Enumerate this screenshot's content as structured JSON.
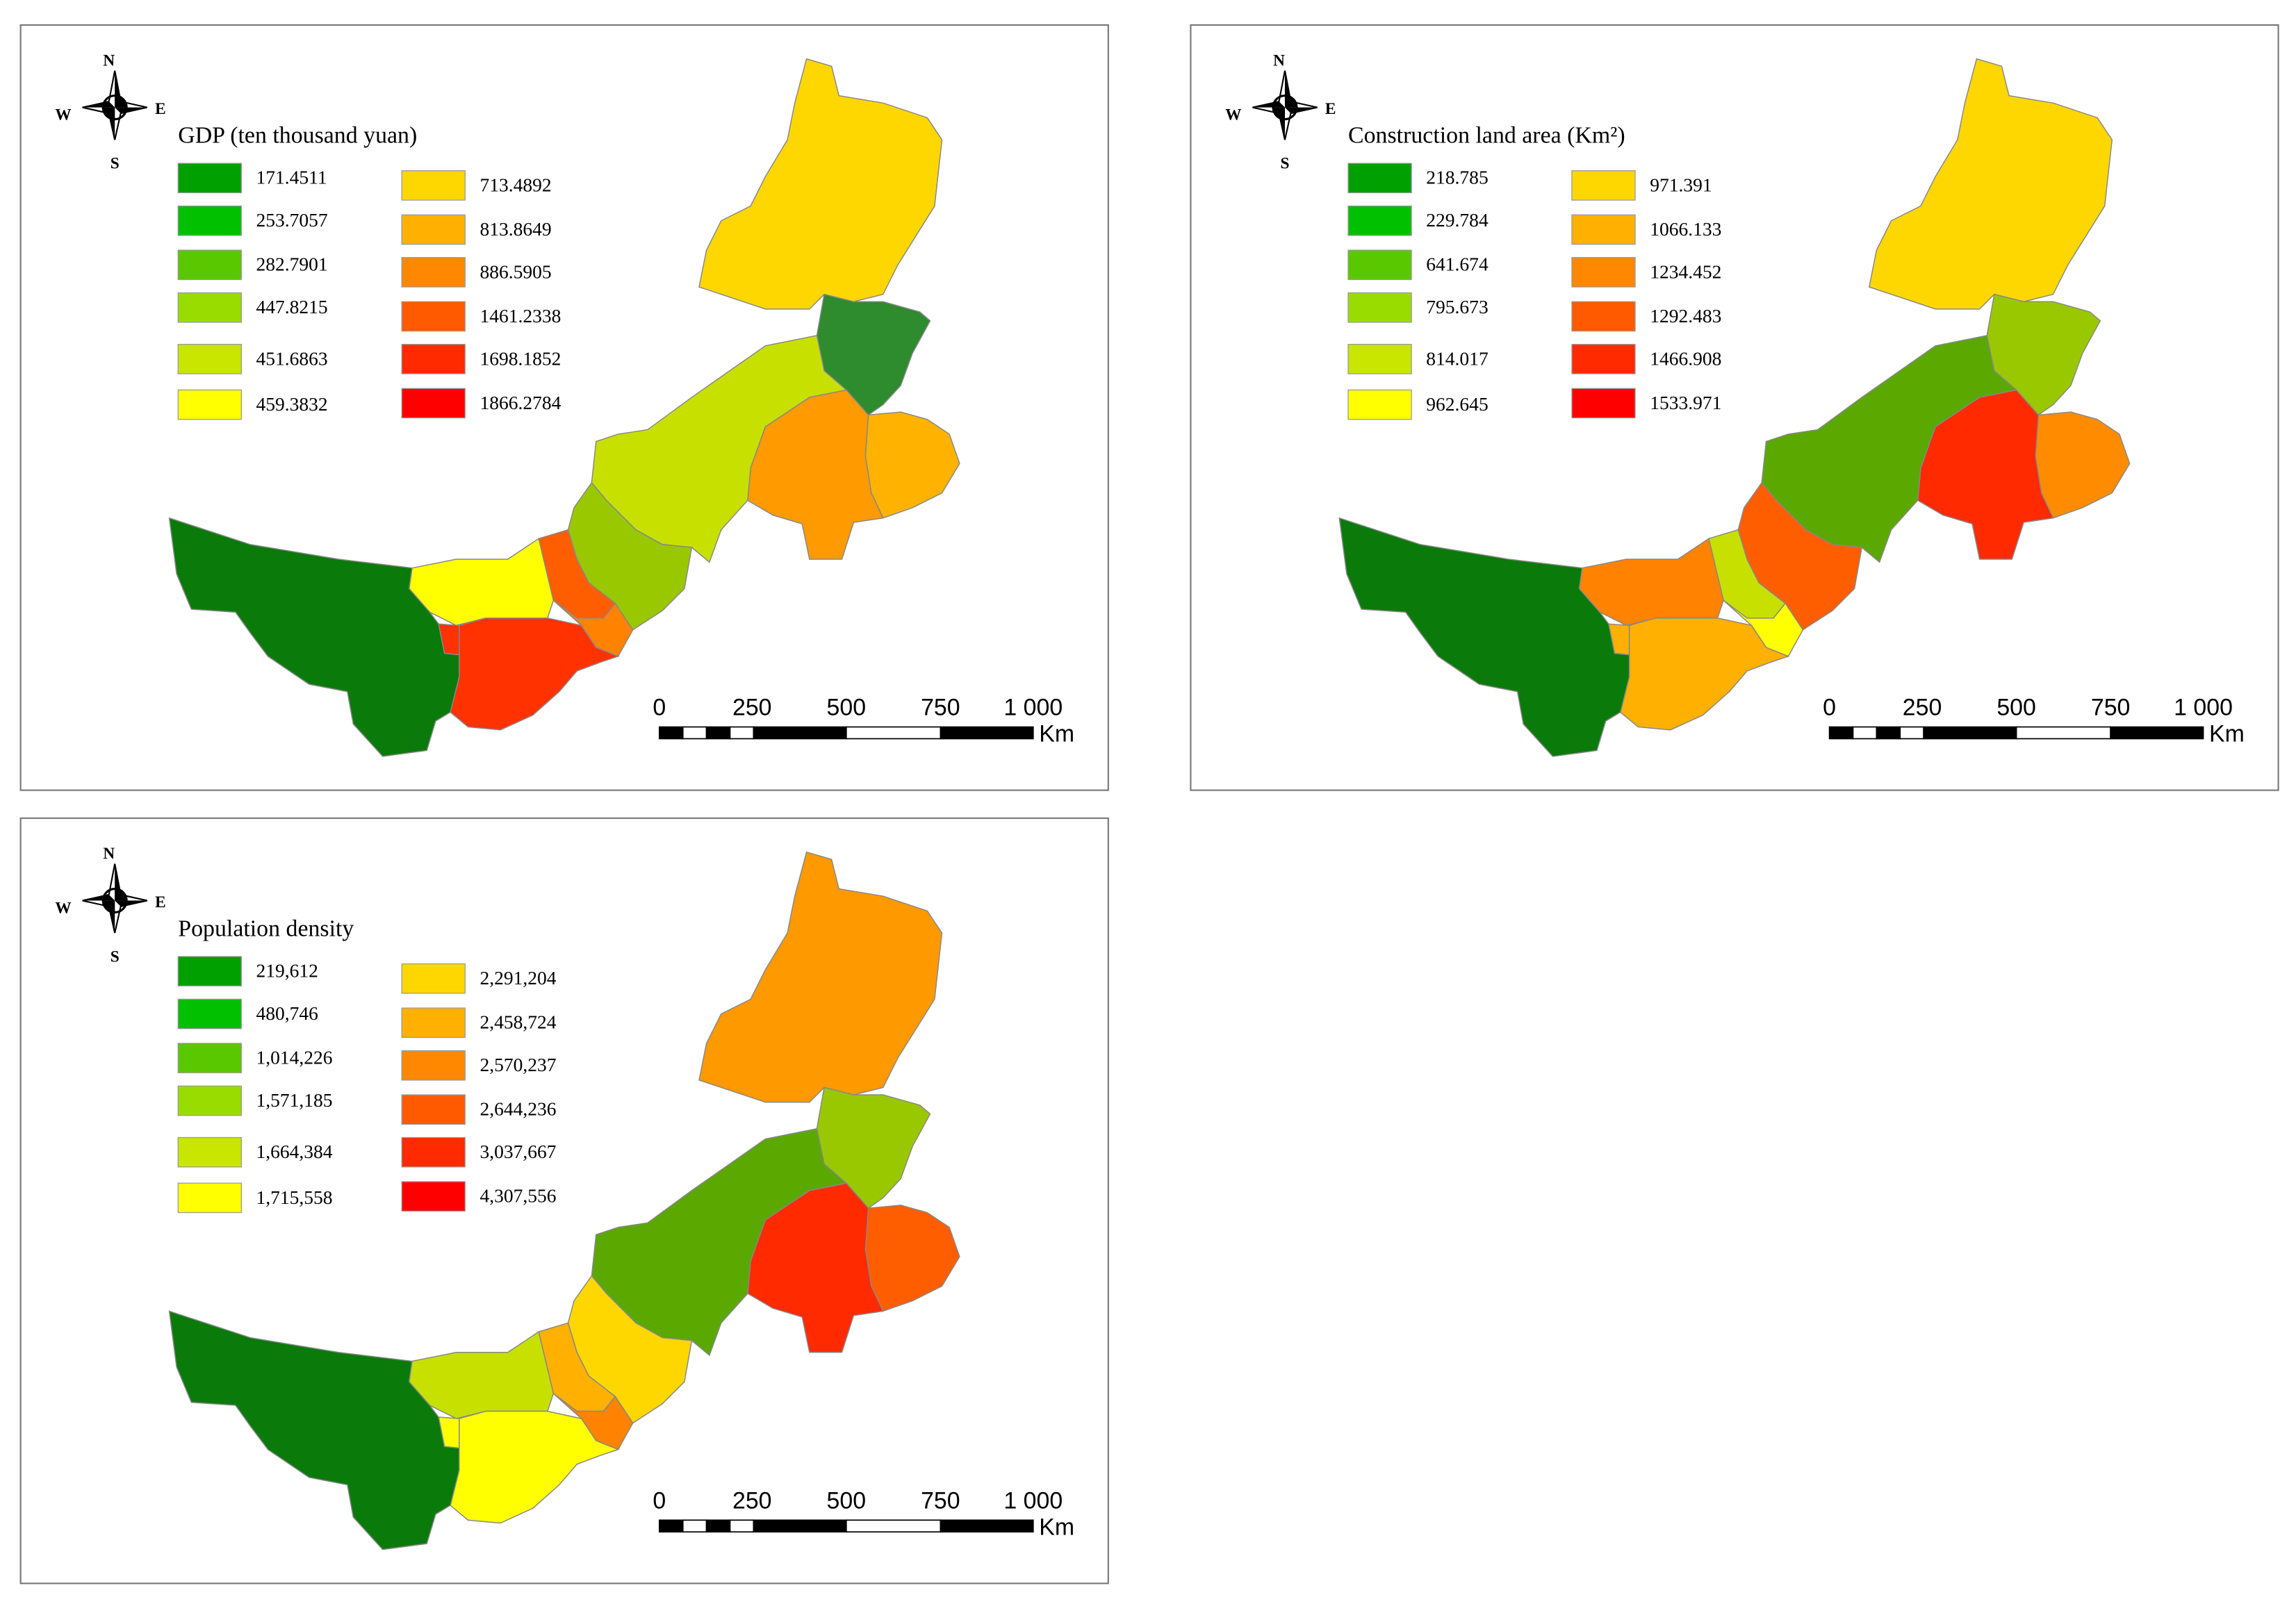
{
  "panels": [
    {
      "legend_title": "GDP (ten thousand yuan)",
      "legend": [
        {
          "label": "171.4511",
          "color": "#00a000"
        },
        {
          "label": "253.7057",
          "color": "#00c000"
        },
        {
          "label": "282.7901",
          "color": "#5ac800"
        },
        {
          "label": "447.8215",
          "color": "#99dd00"
        },
        {
          "label": "451.6863",
          "color": "#c8e600"
        },
        {
          "label": "459.3832",
          "color": "#ffff00"
        },
        {
          "label": "713.4892",
          "color": "#ffd700"
        },
        {
          "label": "813.8649",
          "color": "#ffb000"
        },
        {
          "label": "886.5905",
          "color": "#ff8800"
        },
        {
          "label": "1461.2338",
          "color": "#ff5a00"
        },
        {
          "label": "1698.1852",
          "color": "#ff2a00"
        },
        {
          "label": "1866.2784",
          "color": "#ff0000"
        }
      ]
    },
    {
      "legend_title": "Construction land area (Km²)",
      "legend": [
        {
          "label": "218.785",
          "color": "#00a000"
        },
        {
          "label": "229.784",
          "color": "#00c000"
        },
        {
          "label": "641.674",
          "color": "#5ac800"
        },
        {
          "label": "795.673",
          "color": "#99dd00"
        },
        {
          "label": "814.017",
          "color": "#c8e600"
        },
        {
          "label": "962.645",
          "color": "#ffff00"
        },
        {
          "label": "971.391",
          "color": "#ffd700"
        },
        {
          "label": "1066.133",
          "color": "#ffb000"
        },
        {
          "label": "1234.452",
          "color": "#ff8800"
        },
        {
          "label": "1292.483",
          "color": "#ff5a00"
        },
        {
          "label": "1466.908",
          "color": "#ff2a00"
        },
        {
          "label": "1533.971",
          "color": "#ff0000"
        }
      ]
    },
    {
      "legend_title": "Population density",
      "legend": [
        {
          "label": "219,612",
          "color": "#00a000"
        },
        {
          "label": "480,746",
          "color": "#00c000"
        },
        {
          "label": "1,014,226",
          "color": "#5ac800"
        },
        {
          "label": "1,571,185",
          "color": "#99dd00"
        },
        {
          "label": "1,664,384",
          "color": "#c8e600"
        },
        {
          "label": "1,715,558",
          "color": "#ffff00"
        },
        {
          "label": "2,291,204",
          "color": "#ffd700"
        },
        {
          "label": "2,458,724",
          "color": "#ffb000"
        },
        {
          "label": "2,570,237",
          "color": "#ff8800"
        },
        {
          "label": "2,644,236",
          "color": "#ff5a00"
        },
        {
          "label": "3,037,667",
          "color": "#ff2a00"
        },
        {
          "label": "4,307,556",
          "color": "#ff0000"
        }
      ]
    }
  ],
  "compass": {
    "n": "N",
    "s": "S",
    "e": "E",
    "w": "W"
  },
  "scale_bar": {
    "ticks": [
      "0",
      "250",
      "500",
      "750",
      "1 000"
    ],
    "unit": "Km"
  }
}
